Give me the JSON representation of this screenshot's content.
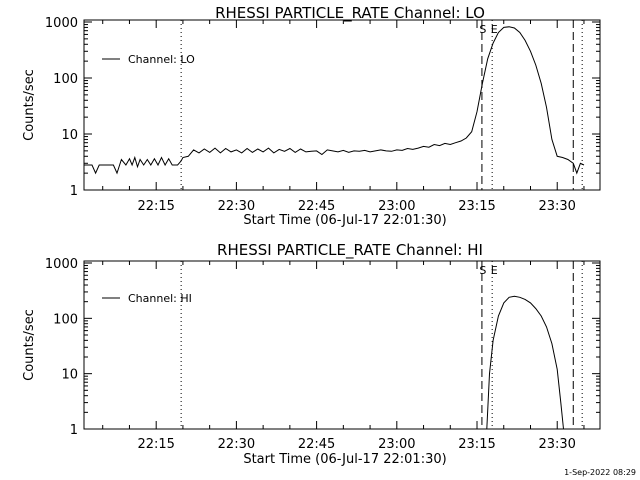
{
  "footer_timestamp": "1-Sep-2022 08:29",
  "chart_data": [
    {
      "type": "line",
      "title": "RHESSI PARTICLE_RATE Channel: LO",
      "xlabel": "Start Time (06-Jul-17 22:01:30)",
      "ylabel": "Counts/sec",
      "yscale": "log",
      "ylim": [
        1,
        1000
      ],
      "xlim": [
        "22:01:30",
        "23:38:00"
      ],
      "x_ticks": [
        "22:15",
        "22:30",
        "22:45",
        "23:00",
        "23:15",
        "23:30"
      ],
      "y_ticks": [
        "1",
        "10",
        "100",
        "1000"
      ],
      "legend": {
        "placement": "top-left",
        "entries": [
          "Channel: LO"
        ]
      },
      "markers": [
        {
          "time": "22:19:40",
          "style": "dotted",
          "label": ""
        },
        {
          "time": "23:15:55",
          "style": "dashed",
          "label": "S"
        },
        {
          "time": "23:17:50",
          "style": "dotted",
          "label": "E"
        },
        {
          "time": "23:33:00",
          "style": "dashed",
          "label": ""
        },
        {
          "time": "23:34:40",
          "style": "dotted",
          "label": ""
        }
      ],
      "series": [
        {
          "name": "Channel: LO",
          "x": [
            "22:01:30",
            "22:03:00",
            "22:03:40",
            "22:04:20",
            "22:05:00",
            "22:06:00",
            "22:07:00",
            "22:07:40",
            "22:08:30",
            "22:09:20",
            "22:10:00",
            "22:10:30",
            "22:11:00",
            "22:11:30",
            "22:12:00",
            "22:12:40",
            "22:13:20",
            "22:14:00",
            "22:14:40",
            "22:15:20",
            "22:16:00",
            "22:16:40",
            "22:17:20",
            "22:18:00",
            "22:19:00",
            "22:19:40",
            "22:20:00",
            "22:21:00",
            "22:22:00",
            "22:23:00",
            "22:24:00",
            "22:25:00",
            "22:26:00",
            "22:27:00",
            "22:28:00",
            "22:29:00",
            "22:30:00",
            "22:31:00",
            "22:32:00",
            "22:33:00",
            "22:34:00",
            "22:35:00",
            "22:36:00",
            "22:37:00",
            "22:38:00",
            "22:39:00",
            "22:40:00",
            "22:41:00",
            "22:42:00",
            "22:43:00",
            "22:44:00",
            "22:45:00",
            "22:46:00",
            "22:47:00",
            "22:48:00",
            "22:49:00",
            "22:50:00",
            "22:51:00",
            "22:52:00",
            "22:53:00",
            "22:54:00",
            "22:55:00",
            "22:56:00",
            "22:57:00",
            "22:58:00",
            "22:59:00",
            "23:00:00",
            "23:01:00",
            "23:02:00",
            "23:03:00",
            "23:04:00",
            "23:05:00",
            "23:06:00",
            "23:07:00",
            "23:08:00",
            "23:09:00",
            "23:10:00",
            "23:11:00",
            "23:12:00",
            "23:13:00",
            "23:14:00",
            "23:15:00",
            "23:16:00",
            "23:17:00",
            "23:18:00",
            "23:19:00",
            "23:20:00",
            "23:21:00",
            "23:22:00",
            "23:23:00",
            "23:24:00",
            "23:25:00",
            "23:26:00",
            "23:27:00",
            "23:28:00",
            "23:29:00",
            "23:30:00",
            "23:31:00",
            "23:32:00",
            "23:33:00",
            "23:33:40",
            "23:34:20",
            "23:35:00"
          ],
          "values": [
            2.8,
            2.8,
            2.0,
            2.8,
            2.8,
            2.8,
            2.8,
            2.0,
            3.5,
            2.8,
            3.6,
            2.8,
            3.8,
            2.6,
            3.5,
            2.8,
            3.5,
            2.8,
            3.6,
            2.8,
            3.8,
            2.8,
            3.6,
            2.8,
            2.8,
            3.3,
            3.8,
            4.0,
            5.2,
            4.6,
            5.4,
            4.7,
            5.6,
            4.6,
            5.5,
            4.8,
            5.2,
            4.6,
            5.5,
            4.7,
            5.4,
            4.8,
            5.6,
            4.6,
            5.3,
            4.9,
            5.5,
            4.7,
            5.4,
            4.8,
            4.9,
            5.0,
            4.3,
            5.2,
            5.0,
            4.8,
            5.1,
            4.7,
            5.0,
            4.9,
            5.1,
            4.8,
            5.0,
            5.2,
            5.0,
            4.9,
            5.2,
            5.1,
            5.5,
            5.3,
            5.6,
            6.0,
            5.8,
            6.5,
            6.2,
            6.8,
            6.5,
            7.0,
            7.5,
            8.5,
            11,
            25,
            80,
            220,
            420,
            650,
            800,
            820,
            780,
            650,
            470,
            300,
            170,
            80,
            30,
            8,
            4,
            3.8,
            3.5,
            3.0,
            2.0,
            3.0,
            2.8
          ]
        }
      ]
    },
    {
      "type": "line",
      "title": "RHESSI PARTICLE_RATE Channel: HI",
      "xlabel": "Start Time (06-Jul-17 22:01:30)",
      "ylabel": "Counts/sec",
      "yscale": "log",
      "ylim": [
        1,
        1000
      ],
      "xlim": [
        "22:01:30",
        "23:38:00"
      ],
      "x_ticks": [
        "22:15",
        "22:30",
        "22:45",
        "23:00",
        "23:15",
        "23:30"
      ],
      "y_ticks": [
        "1",
        "10",
        "100",
        "1000"
      ],
      "legend": {
        "placement": "top-left",
        "entries": [
          "Channel: HI"
        ]
      },
      "markers": [
        {
          "time": "22:19:40",
          "style": "dotted",
          "label": ""
        },
        {
          "time": "23:15:55",
          "style": "dashed",
          "label": "S"
        },
        {
          "time": "23:17:50",
          "style": "dotted",
          "label": "E"
        },
        {
          "time": "23:33:00",
          "style": "dashed",
          "label": ""
        },
        {
          "time": "23:34:40",
          "style": "dotted",
          "label": ""
        }
      ],
      "series": [
        {
          "name": "Channel: HI",
          "x": [
            "23:16:50",
            "23:17:20",
            "23:18:00",
            "23:19:00",
            "23:20:00",
            "23:21:00",
            "23:22:00",
            "23:23:00",
            "23:24:00",
            "23:25:00",
            "23:26:00",
            "23:27:00",
            "23:28:00",
            "23:29:00",
            "23:30:00",
            "23:30:40",
            "23:31:10"
          ],
          "values": [
            1,
            10,
            40,
            110,
            190,
            240,
            250,
            240,
            220,
            190,
            150,
            110,
            70,
            35,
            12,
            3,
            1
          ]
        }
      ]
    }
  ]
}
